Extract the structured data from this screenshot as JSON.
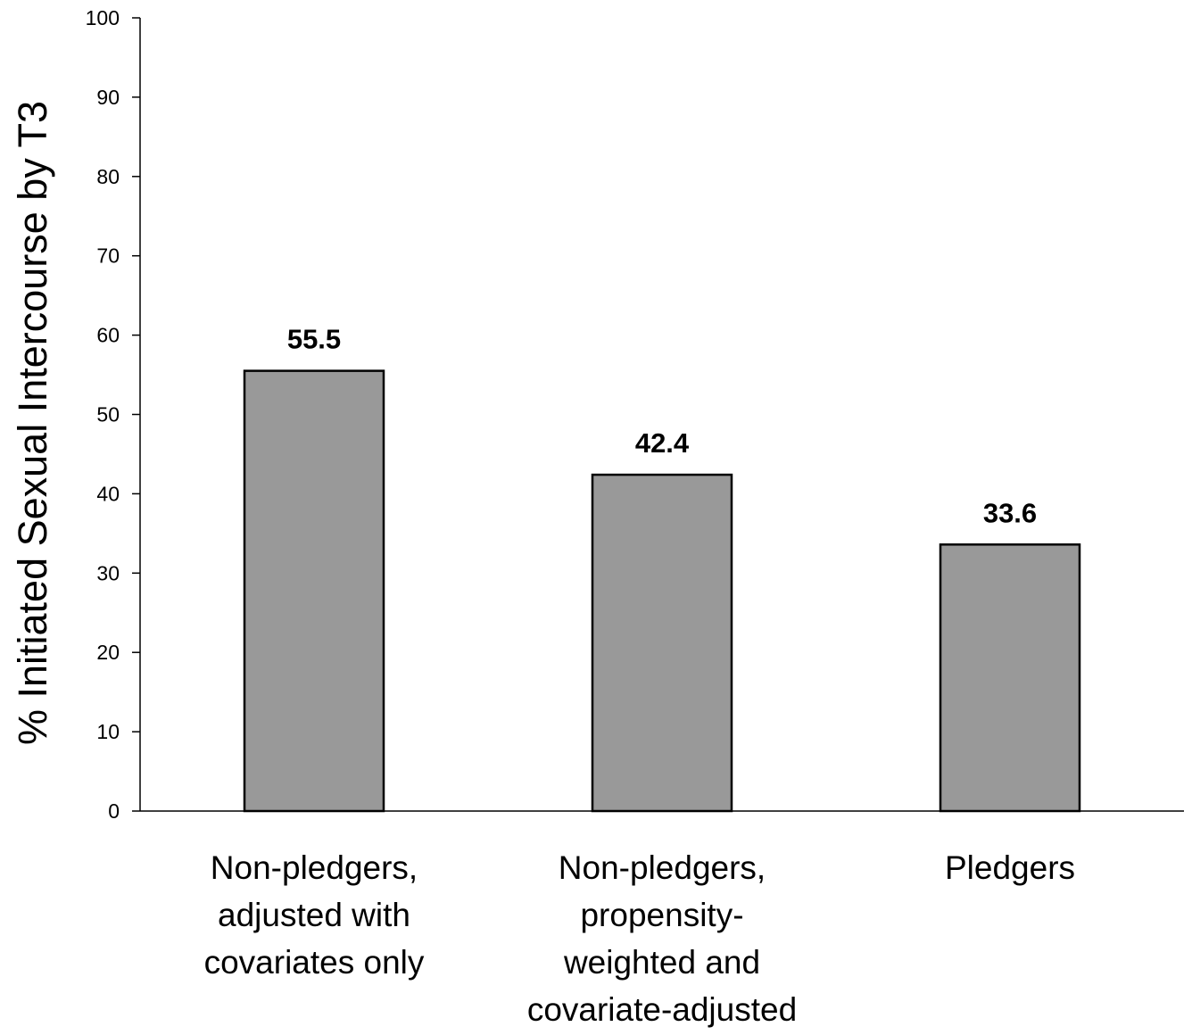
{
  "chart_data": {
    "type": "bar",
    "title": "",
    "xlabel": "",
    "ylabel": "% Initiated Sexual Intercourse by T3",
    "ylim": [
      0,
      100
    ],
    "yticks": [
      0,
      10,
      20,
      30,
      40,
      50,
      60,
      70,
      80,
      90,
      100
    ],
    "categories": [
      [
        "Non-pledgers,",
        "adjusted with",
        "covariates only"
      ],
      [
        "Non-pledgers,",
        "propensity-",
        "weighted and",
        "covariate-adjusted"
      ],
      [
        "Pledgers"
      ]
    ],
    "values": [
      55.5,
      42.4,
      33.6
    ],
    "value_labels": [
      "55.5",
      "42.4",
      "33.6"
    ],
    "bar_color": "#999999",
    "bar_edge_color": "#000000",
    "grid": false,
    "legend": "none"
  }
}
